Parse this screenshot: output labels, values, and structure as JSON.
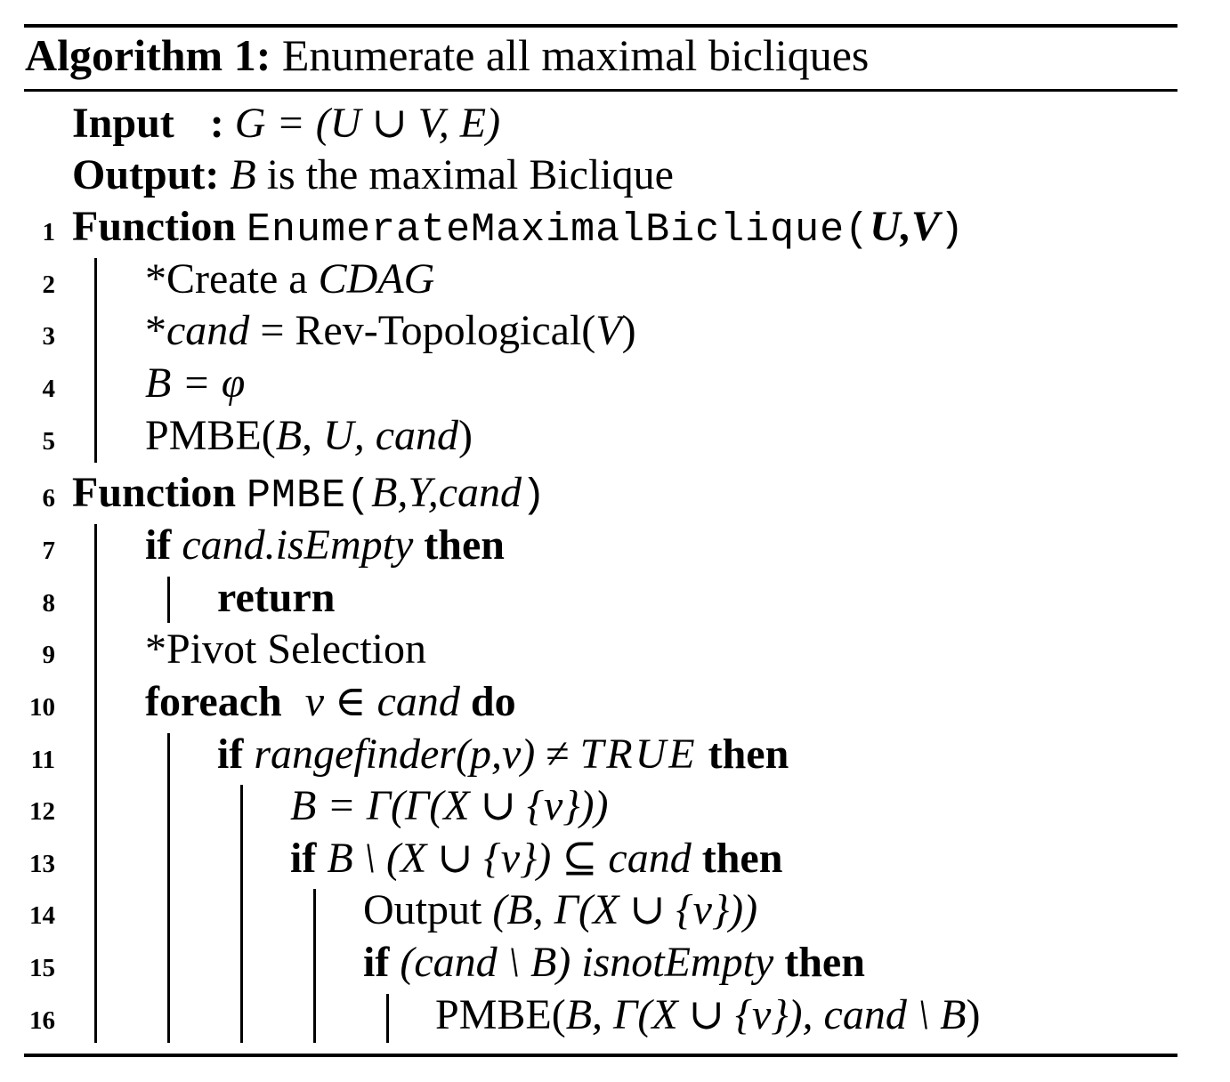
{
  "caption": {
    "label": "Algorithm 1:",
    "title": "Enumerate all maximal bicliques"
  },
  "io": {
    "input_keyword": "Input",
    "input_colon": ":",
    "input_value": "G = (U ∪ V, E)",
    "output_keyword": "Output:",
    "output_var": "B",
    "output_text": "is the maximal Biclique"
  },
  "lines": {
    "l1": {
      "num": "1",
      "kw": "Function",
      "name": "EnumerateMaximalBiclique",
      "open": "(",
      "args": "U,V",
      "close": ")"
    },
    "l2": {
      "num": "2",
      "text": "*Create a",
      "math": "CDAG"
    },
    "l3": {
      "num": "3",
      "star": "*",
      "var": "cand",
      "text": "= Rev-Topological(",
      "arg": "V",
      "close": ")"
    },
    "l4": {
      "num": "4",
      "math": "B = φ"
    },
    "l5": {
      "num": "5",
      "fn": "PMBE(",
      "args": "B, U, cand",
      "close": ")"
    },
    "l6": {
      "num": "6",
      "kw": "Function",
      "name": "PMBE",
      "open": "(",
      "args": "B,Y,cand",
      "close": ")"
    },
    "l7": {
      "num": "7",
      "kw_if": "if",
      "cond": "cand.isEmpty",
      "kw_then": "then"
    },
    "l8": {
      "num": "8",
      "kw": "return"
    },
    "l9": {
      "num": "9",
      "text": "*Pivot Selection"
    },
    "l10": {
      "num": "10",
      "kw": "foreach",
      "cond": "v ∈ cand",
      "kw_do": "do"
    },
    "l11": {
      "num": "11",
      "kw_if": "if",
      "cond": "rangefinder(p,v)",
      "rel": "≠",
      "val": "TRUE",
      "kw_then": "then"
    },
    "l12": {
      "num": "12",
      "math": "B = Γ(Γ(X ∪ {v}))"
    },
    "l13": {
      "num": "13",
      "kw_if": "if",
      "math": "B \\ (X ∪ {v}) ⊆ cand",
      "kw_then": "then"
    },
    "l14": {
      "num": "14",
      "text": "Output",
      "math": "(B, Γ(X ∪ {v}))"
    },
    "l15": {
      "num": "15",
      "kw_if": "if",
      "math": "(cand \\ B) isnotEmpty",
      "kw_then": "then"
    },
    "l16": {
      "num": "16",
      "fn": "PMBE(",
      "math": "B, Γ(X ∪ {v}), cand \\ B",
      "close": ")"
    }
  }
}
